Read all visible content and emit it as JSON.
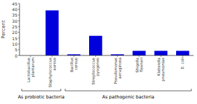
{
  "chart_data": {
    "type": "bar",
    "categories": [
      "Lactobacillus\nplantarum",
      "Staphylococcus\naureus",
      "Bacillus\ncereus",
      "Streptococcus\npyogenes",
      "Pseudomonas\naeruginosa",
      "Shigella\nflexneri",
      "Klebsiella\npneumoniae",
      "E. coli"
    ],
    "values": [
      0,
      39,
      1,
      17,
      1,
      4,
      4,
      4
    ],
    "color": "#0000dd",
    "ylabel": "Percent",
    "ylim": [
      0,
      45
    ],
    "yticks": [
      0,
      5,
      10,
      15,
      20,
      25,
      30,
      35,
      40,
      45
    ],
    "grid": false,
    "annotations": [
      {
        "text": "As probiotic bacteria",
        "range": [
          0,
          1
        ]
      },
      {
        "text": "As pathogenic bacteria",
        "range": [
          2,
          7
        ]
      }
    ]
  }
}
